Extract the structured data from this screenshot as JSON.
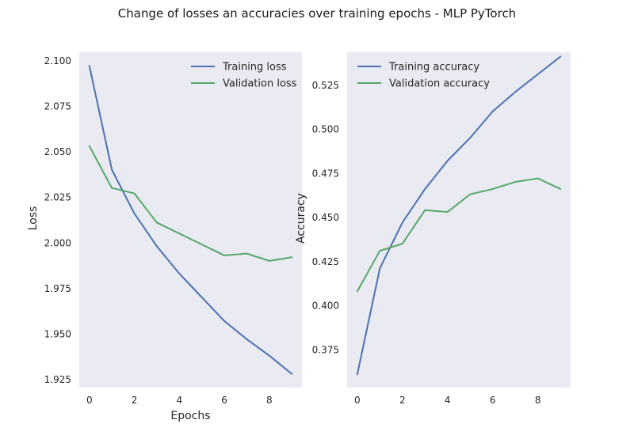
{
  "figure": {
    "title": "Change of losses an accuracies over training epochs - MLP PyTorch"
  },
  "chart_data": [
    {
      "type": "line",
      "xlabel": "Epochs",
      "ylabel": "Loss",
      "xlim": [
        -0.45,
        9.45
      ],
      "ylim": [
        1.9205,
        2.1045
      ],
      "xticks": [
        0,
        2,
        4,
        6,
        8
      ],
      "yticks": [
        1.925,
        1.95,
        1.975,
        2.0,
        2.025,
        2.05,
        2.075,
        2.1
      ],
      "ytick_labels": [
        "1.925",
        "1.950",
        "1.975",
        "2.000",
        "2.025",
        "2.050",
        "2.075",
        "2.100"
      ],
      "grid": false,
      "legend": "upper right",
      "x": [
        0,
        1,
        2,
        3,
        4,
        5,
        6,
        7,
        8,
        9
      ],
      "series": [
        {
          "name": "Training loss",
          "color": "#4c72b0",
          "values": [
            2.097,
            2.04,
            2.016,
            1.998,
            1.983,
            1.97,
            1.957,
            1.947,
            1.938,
            1.928
          ]
        },
        {
          "name": "Validation loss",
          "color": "#55a868",
          "values": [
            2.053,
            2.03,
            2.027,
            2.011,
            2.005,
            1.999,
            1.993,
            1.994,
            1.99,
            1.992
          ]
        }
      ]
    },
    {
      "type": "line",
      "xlabel": "",
      "ylabel": "Accuracy",
      "xlim": [
        -0.45,
        9.45
      ],
      "ylim": [
        0.3535,
        0.5435
      ],
      "xticks": [
        0,
        2,
        4,
        6,
        8
      ],
      "yticks": [
        0.375,
        0.4,
        0.425,
        0.45,
        0.475,
        0.5,
        0.525
      ],
      "ytick_labels": [
        "0.375",
        "0.400",
        "0.425",
        "0.450",
        "0.475",
        "0.500",
        "0.525"
      ],
      "grid": false,
      "legend": "upper left",
      "x": [
        0,
        1,
        2,
        3,
        4,
        5,
        6,
        7,
        8,
        9
      ],
      "series": [
        {
          "name": "Training accuracy",
          "color": "#4c72b0",
          "values": [
            0.361,
            0.421,
            0.447,
            0.466,
            0.482,
            0.495,
            0.51,
            0.521,
            0.531,
            0.541
          ]
        },
        {
          "name": "Validation accuracy",
          "color": "#55a868",
          "values": [
            0.408,
            0.431,
            0.435,
            0.454,
            0.453,
            0.463,
            0.466,
            0.47,
            0.472,
            0.466
          ]
        }
      ]
    }
  ]
}
